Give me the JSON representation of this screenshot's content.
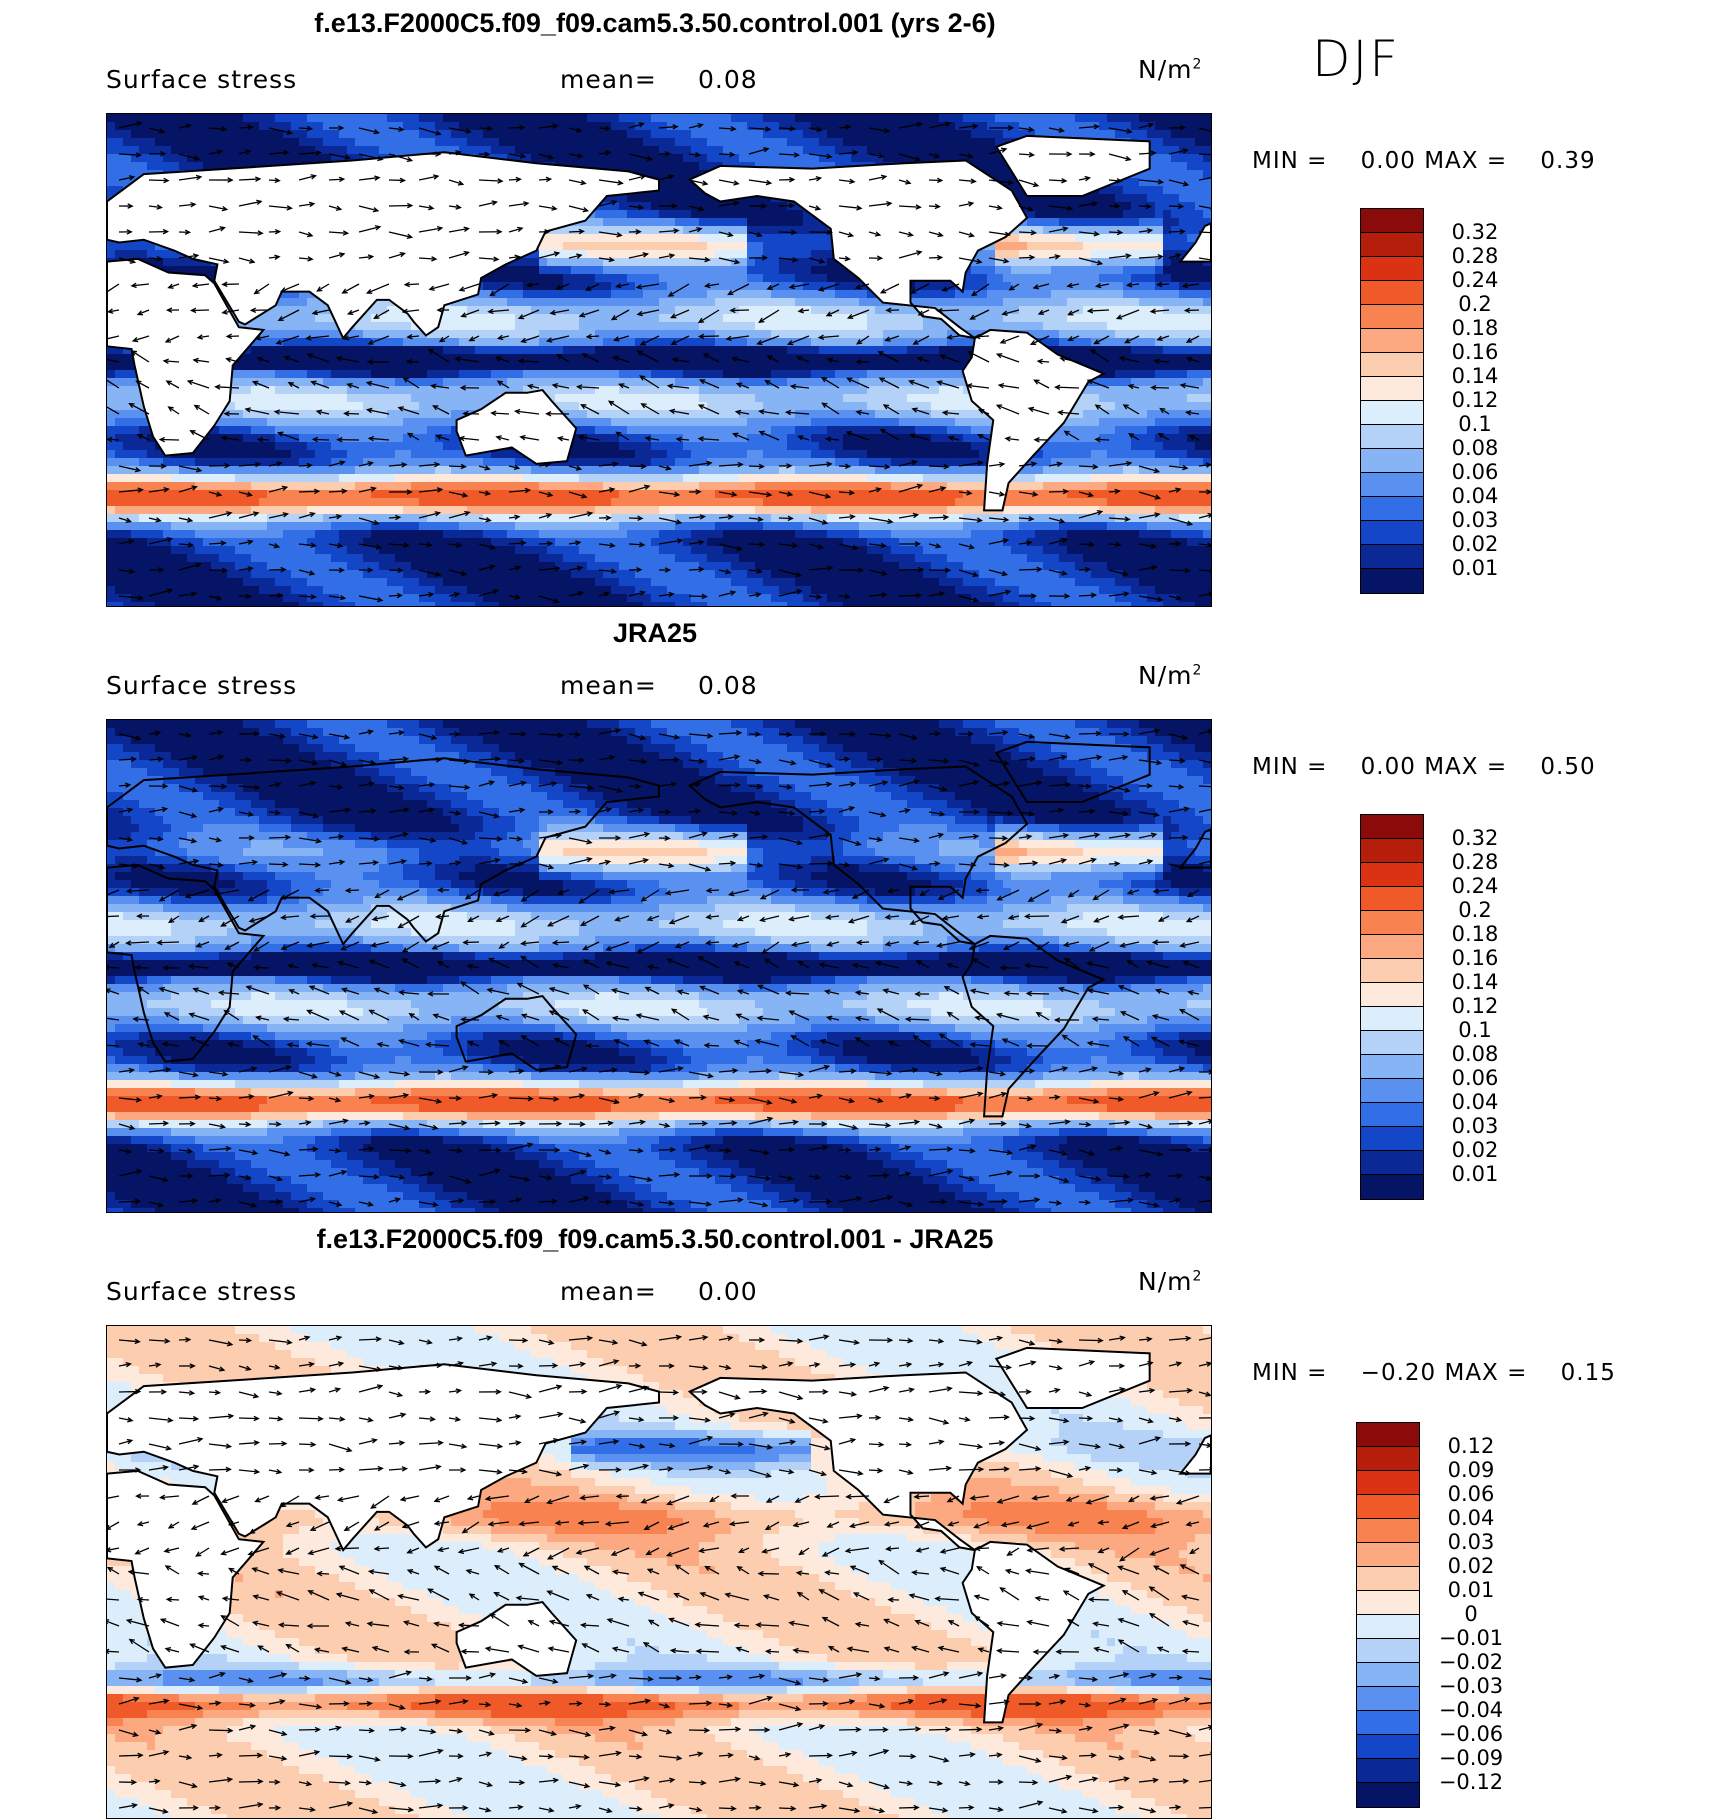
{
  "season": "DJF",
  "colors": {
    "land": "#ffffff",
    "coast": "#000000",
    "arrow": "#000000"
  },
  "panels": [
    {
      "id": "model",
      "title": "f.e13.F2000C5.f09_f09.cam5.3.50.control.001 (yrs 2-6)",
      "field_label": "Surface stress",
      "mean_label": "mean=",
      "mean_value": "0.08",
      "units": "N/m",
      "units_exp": "2",
      "min_label": "MIN =",
      "min_value": "0.00",
      "max_label": "MAX =",
      "max_value": "0.39",
      "colorbar_labels": [
        "0.32",
        "0.28",
        "0.24",
        "0.2",
        "0.18",
        "0.16",
        "0.14",
        "0.12",
        "0.1",
        "0.08",
        "0.06",
        "0.04",
        "0.03",
        "0.02",
        "0.01"
      ],
      "colorbar_colors": [
        "#8b0a0a",
        "#b41e0a",
        "#dc3214",
        "#f05a28",
        "#f88250",
        "#fca880",
        "#fdcdb0",
        "#feeadc",
        "#dceefc",
        "#b4d2f8",
        "#87b4f5",
        "#5a91f0",
        "#326ee6",
        "#1446c8",
        "#0a2896",
        "#051464"
      ]
    },
    {
      "id": "obs",
      "title": "JRA25",
      "field_label": "Surface stress",
      "mean_label": "mean=",
      "mean_value": "0.08",
      "units": "N/m",
      "units_exp": "2",
      "min_label": "MIN =",
      "min_value": "0.00",
      "max_label": "MAX =",
      "max_value": "0.50",
      "colorbar_labels": [
        "0.32",
        "0.28",
        "0.24",
        "0.2",
        "0.18",
        "0.16",
        "0.14",
        "0.12",
        "0.1",
        "0.08",
        "0.06",
        "0.04",
        "0.03",
        "0.02",
        "0.01"
      ],
      "colorbar_colors": [
        "#8b0a0a",
        "#b41e0a",
        "#dc3214",
        "#f05a28",
        "#f88250",
        "#fca880",
        "#fdcdb0",
        "#feeadc",
        "#dceefc",
        "#b4d2f8",
        "#87b4f5",
        "#5a91f0",
        "#326ee6",
        "#1446c8",
        "#0a2896",
        "#051464"
      ]
    },
    {
      "id": "diff",
      "title": "f.e13.F2000C5.f09_f09.cam5.3.50.control.001 - JRA25",
      "field_label": "Surface stress",
      "mean_label": "mean=",
      "mean_value": "0.00",
      "units": "N/m",
      "units_exp": "2",
      "min_label": "MIN =",
      "min_value": "−0.20",
      "max_label": "MAX =",
      "max_value": "0.15",
      "colorbar_labels": [
        "0.12",
        "0.09",
        "0.06",
        "0.04",
        "0.03",
        "0.02",
        "0.01",
        "0",
        "−0.01",
        "−0.02",
        "−0.03",
        "−0.04",
        "−0.06",
        "−0.09",
        "−0.12"
      ],
      "colorbar_colors": [
        "#8b0a0a",
        "#b41e0a",
        "#dc3214",
        "#f05a28",
        "#f88250",
        "#fca880",
        "#fdcdb0",
        "#feeadc",
        "#dceefc",
        "#b4d2f8",
        "#87b4f5",
        "#5a91f0",
        "#326ee6",
        "#1446c8",
        "#0a2896",
        "#051464"
      ]
    }
  ]
}
